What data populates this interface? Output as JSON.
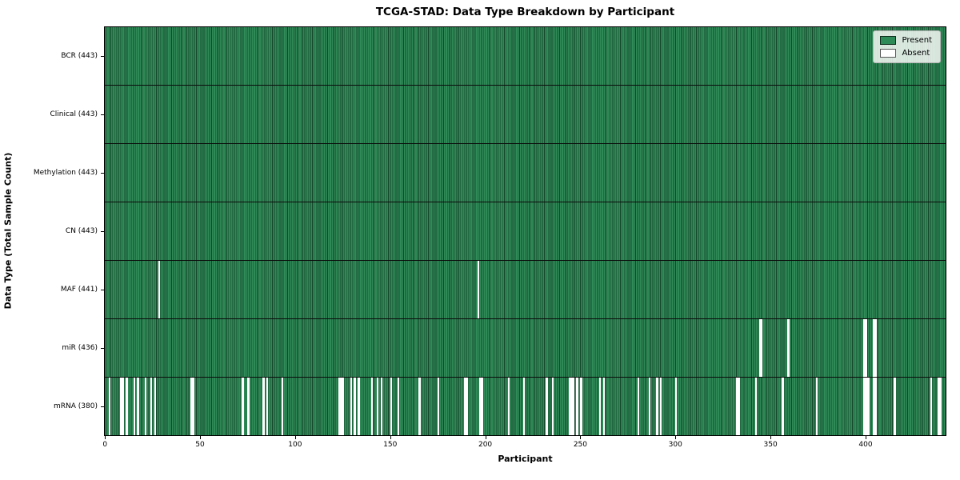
{
  "figure": {
    "title": "TCGA-STAD: Data Type Breakdown by Participant",
    "xlabel": "Participant",
    "ylabel": "Data Type (Total Sample Count)"
  },
  "legend": {
    "items": [
      {
        "label": "Present",
        "color": "#2e8b57"
      },
      {
        "label": "Absent",
        "color": "#ffffff"
      }
    ]
  },
  "colors": {
    "present": "#2e8b57",
    "absent": "#ffffff",
    "bar_edge": "#0a1a10",
    "spine": "#000000",
    "legend_bg": "rgba(255,255,255,0.82)"
  },
  "chart_data": {
    "type": "heatmap",
    "title": "TCGA-STAD: Data Type Breakdown by Participant",
    "xlabel": "Participant",
    "ylabel": "Data Type (Total Sample Count)",
    "legend": [
      "Present",
      "Absent"
    ],
    "legend_position": "upper right",
    "grid": false,
    "total_participants": 443,
    "x_ticks": [
      0,
      50,
      100,
      150,
      200,
      250,
      300,
      350,
      400
    ],
    "x_range": [
      -0.5,
      442.5
    ],
    "rows": [
      {
        "data_type": "BCR",
        "label": "BCR (443)",
        "present_count": 443,
        "absent_participants": []
      },
      {
        "data_type": "Clinical",
        "label": "Clinical (443)",
        "present_count": 443,
        "absent_participants": []
      },
      {
        "data_type": "Methylation",
        "label": "Methylation (443)",
        "present_count": 443,
        "absent_participants": []
      },
      {
        "data_type": "CN",
        "label": "CN (443)",
        "present_count": 443,
        "absent_participants": []
      },
      {
        "data_type": "MAF",
        "label": "MAF (441)",
        "present_count": 441,
        "absent_participants": [
          28,
          196
        ]
      },
      {
        "data_type": "miR",
        "label": "miR (436)",
        "present_count": 436,
        "absent_participants": [
          344,
          345,
          359,
          399,
          400,
          404,
          405
        ]
      },
      {
        "data_type": "mRNA",
        "label": "mRNA (380)",
        "present_count": 380,
        "absent_participants": [
          2,
          8,
          9,
          11,
          15,
          17,
          21,
          24,
          26,
          45,
          46,
          72,
          75,
          83,
          85,
          93,
          123,
          124,
          125,
          129,
          131,
          133,
          140,
          143,
          145,
          150,
          154,
          165,
          175,
          189,
          190,
          197,
          198,
          212,
          220,
          232,
          235,
          244,
          245,
          246,
          248,
          250,
          260,
          262,
          280,
          286,
          290,
          292,
          300,
          332,
          333,
          342,
          356,
          374,
          399,
          400,
          401,
          404,
          405,
          415,
          434,
          438,
          439
        ]
      }
    ]
  }
}
